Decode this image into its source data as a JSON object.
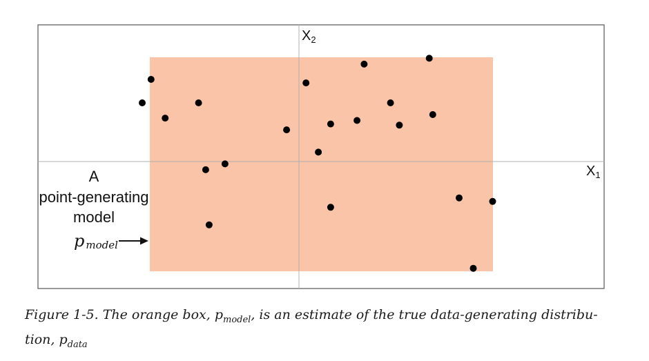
{
  "diagram": {
    "x_axis_label": "X",
    "x_axis_subscript": "1",
    "y_axis_label": "X",
    "y_axis_subscript": "2",
    "model_box_color": "#f9c4a7",
    "point_color": "#000000",
    "annotation_lines": [
      "A",
      "point-generating",
      "model"
    ],
    "pmodel_label": "p",
    "pmodel_subscript": "model",
    "points": [
      {
        "x": -0.84,
        "y": 0.7
      },
      {
        "x": -0.89,
        "y": 0.5
      },
      {
        "x": -0.76,
        "y": 0.37
      },
      {
        "x": -0.57,
        "y": 0.5
      },
      {
        "x": -0.07,
        "y": 0.27
      },
      {
        "x": 0.04,
        "y": 0.67
      },
      {
        "x": 0.11,
        "y": 0.08
      },
      {
        "x": 0.18,
        "y": 0.32
      },
      {
        "x": 0.33,
        "y": 0.35
      },
      {
        "x": 0.37,
        "y": 0.83
      },
      {
        "x": 0.52,
        "y": 0.5
      },
      {
        "x": 0.57,
        "y": 0.31
      },
      {
        "x": 0.74,
        "y": 0.88
      },
      {
        "x": 0.76,
        "y": 0.4
      },
      {
        "x": -0.53,
        "y": -0.07
      },
      {
        "x": -0.42,
        "y": -0.02
      },
      {
        "x": 0.18,
        "y": -0.39
      },
      {
        "x": -0.51,
        "y": -0.54
      },
      {
        "x": 0.91,
        "y": -0.31
      },
      {
        "x": 1.1,
        "y": -0.34
      },
      {
        "x": 0.99,
        "y": -0.91
      }
    ]
  },
  "caption": {
    "prefix": "Figure 1-5. The orange box, ",
    "p_symbol": "p",
    "model_subscript": "model",
    "middle": ", is an estimate of the true data-generating distribu-",
    "line2_prefix": "tion, ",
    "data_subscript": "data"
  }
}
